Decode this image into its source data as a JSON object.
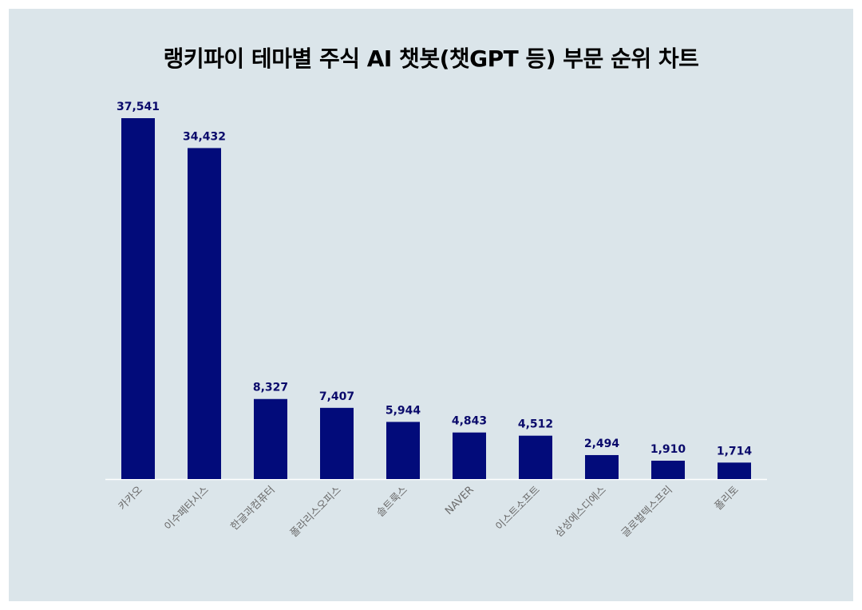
{
  "chart_data": {
    "type": "bar",
    "title": "랭키파이 테마별 주식 AI 챗봇(챗GPT 등) 부문 순위 차트",
    "categories": [
      "카카오",
      "이수페타시스",
      "한글과컴퓨터",
      "폴라리스오피스",
      "솔트룩스",
      "NAVER",
      "이스트소프트",
      "삼성에스디에스",
      "글로벌텍스프리",
      "폴리토"
    ],
    "values": [
      37541,
      34432,
      8327,
      7407,
      5944,
      4843,
      4512,
      2494,
      1910,
      1714
    ],
    "value_labels": [
      "37,541",
      "34,432",
      "8,327",
      "7,407",
      "5,944",
      "4,843",
      "4,512",
      "2,494",
      "1,910",
      "1,714"
    ],
    "xlabel": "",
    "ylabel": "",
    "ylim": [
      0,
      37541
    ],
    "grid": false,
    "bar_color": "#020b7a",
    "background_color": "#dbe5ea"
  }
}
